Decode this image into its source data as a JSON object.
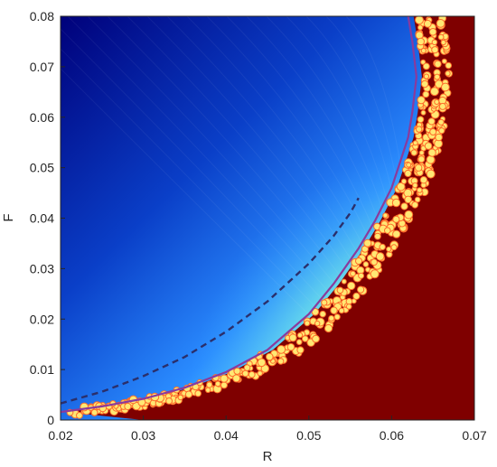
{
  "chart_data": {
    "type": "heatmap",
    "title": "",
    "xlabel": "R",
    "ylabel": "F",
    "xlim": [
      0.02,
      0.07
    ],
    "ylim": [
      0,
      0.08
    ],
    "x_ticks": [
      "0.02",
      "0.03",
      "0.04",
      "0.05",
      "0.06",
      "0.07"
    ],
    "y_ticks": [
      "0",
      "0.01",
      "0.02",
      "0.03",
      "0.04",
      "0.05",
      "0.06",
      "0.07",
      "0.08"
    ],
    "grid": false,
    "legend": "none",
    "colormap": "jet",
    "colors": {
      "low": "#00007f",
      "mid_blue": "#1e7cff",
      "cyan": "#7fffff",
      "high": "#7f0000",
      "solid_curve": "#8b3a9c",
      "dashed_curve": "#2b2f6b"
    },
    "series": [
      {
        "style": "solid",
        "x": [
          0.02,
          0.025,
          0.03,
          0.035,
          0.04,
          0.045,
          0.05,
          0.053,
          0.056,
          0.058,
          0.06,
          0.061,
          0.062,
          0.0625,
          0.063,
          0.0625,
          0.062
        ],
        "y": [
          0.0016,
          0.0027,
          0.0042,
          0.0064,
          0.0095,
          0.0139,
          0.021,
          0.027,
          0.034,
          0.0395,
          0.046,
          0.051,
          0.056,
          0.061,
          0.068,
          0.075,
          0.08
        ]
      },
      {
        "style": "dashed",
        "x": [
          0.02,
          0.025,
          0.03,
          0.035,
          0.04,
          0.045,
          0.05,
          0.053,
          0.055,
          0.056
        ],
        "y": [
          0.0033,
          0.0056,
          0.0087,
          0.0125,
          0.0175,
          0.0235,
          0.031,
          0.0365,
          0.041,
          0.044
        ]
      }
    ]
  }
}
